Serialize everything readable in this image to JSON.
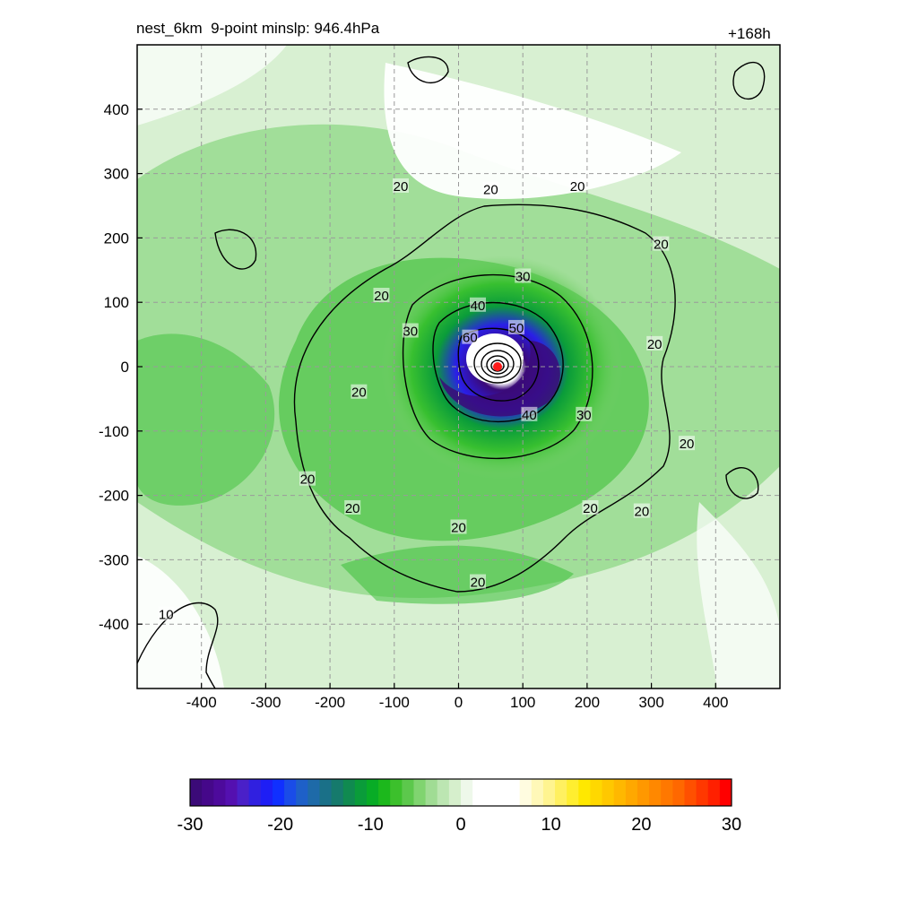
{
  "header": {
    "title": "nest_6km  9-point minslp: 946.4hPa",
    "forecast_hour": "+168h"
  },
  "chart_data": {
    "type": "heatmap",
    "title": "nest_6km  9-point minslp: 946.4hPa",
    "annotation": "+168h",
    "xlabel": "",
    "ylabel": "",
    "xlim": [
      -500,
      500
    ],
    "ylim": [
      -500,
      500
    ],
    "x_ticks": [
      -400,
      -300,
      -200,
      -100,
      0,
      100,
      200,
      300,
      400
    ],
    "y_ticks": [
      400,
      300,
      200,
      100,
      0,
      -100,
      -200,
      -300,
      -400
    ],
    "grid": true,
    "center": {
      "x": 60,
      "y": 0
    },
    "min_slp_hPa": 946.4,
    "contour_levels": [
      10,
      20,
      30,
      40,
      50,
      60
    ],
    "contour_labels": [
      {
        "text": "20",
        "x": -90,
        "y": 280
      },
      {
        "text": "20",
        "x": 50,
        "y": 275
      },
      {
        "text": "20",
        "x": 185,
        "y": 280
      },
      {
        "text": "20",
        "x": 315,
        "y": 190
      },
      {
        "text": "20",
        "x": -120,
        "y": 110
      },
      {
        "text": "30",
        "x": 100,
        "y": 140
      },
      {
        "text": "30",
        "x": -75,
        "y": 55
      },
      {
        "text": "40",
        "x": 30,
        "y": 95
      },
      {
        "text": "50",
        "x": 90,
        "y": 60
      },
      {
        "text": "60",
        "x": 18,
        "y": 45
      },
      {
        "text": "20",
        "x": 305,
        "y": 35
      },
      {
        "text": "20",
        "x": -155,
        "y": -40
      },
      {
        "text": "40",
        "x": 110,
        "y": -75
      },
      {
        "text": "30",
        "x": 195,
        "y": -75
      },
      {
        "text": "20",
        "x": 355,
        "y": -120
      },
      {
        "text": "20",
        "x": -235,
        "y": -175
      },
      {
        "text": "20",
        "x": -165,
        "y": -220
      },
      {
        "text": "20",
        "x": 205,
        "y": -220
      },
      {
        "text": "20",
        "x": 285,
        "y": -225
      },
      {
        "text": "20",
        "x": 0,
        "y": -250
      },
      {
        "text": "20",
        "x": 30,
        "y": -335
      },
      {
        "text": "10",
        "x": -455,
        "y": -385
      }
    ],
    "colorbar": {
      "min": -30,
      "max": 30,
      "tick_labels": [
        "-30",
        "-20",
        "-10",
        "0",
        "10",
        "20",
        "30"
      ],
      "colors": [
        "#3b0a78",
        "#45088a",
        "#4d0a9c",
        "#5410b0",
        "#4a20c8",
        "#3020e0",
        "#1e1ef5",
        "#1030ff",
        "#1a4ce8",
        "#1e60c8",
        "#1e6aa8",
        "#1a7088",
        "#167a6c",
        "#108a50",
        "#0a9c3a",
        "#08ac26",
        "#1cb81c",
        "#3cc02c",
        "#5cc84c",
        "#80d470",
        "#a0dc94",
        "#bce6b2",
        "#d6efcc",
        "#eef8ea",
        "#ffffff",
        "#ffffff",
        "#ffffff",
        "#ffffff",
        "#fffce0",
        "#fff8b8",
        "#fff490",
        "#fff060",
        "#ffee30",
        "#ffe800",
        "#ffd800",
        "#ffc800",
        "#ffb800",
        "#ffa800",
        "#ff9800",
        "#ff8800",
        "#ff7800",
        "#ff6800",
        "#ff5000",
        "#ff3800",
        "#ff2000",
        "#ff0000"
      ]
    }
  }
}
